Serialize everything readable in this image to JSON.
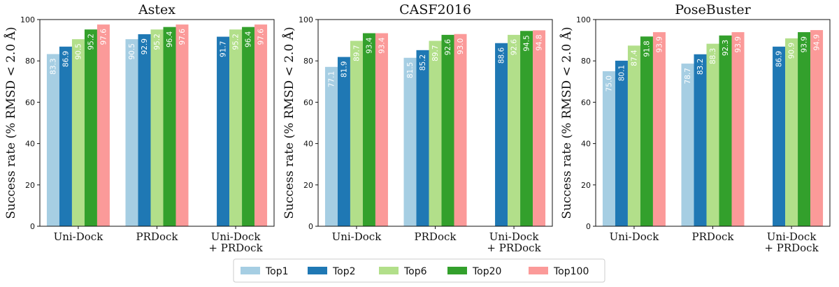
{
  "chart_data": [
    {
      "type": "bar",
      "title": "Astex",
      "ylabel": "Success rate (% RMSD < 2.0 Å)",
      "xlabel": "",
      "ylim": [
        0,
        100
      ],
      "yticks": [
        "0",
        "20",
        "40",
        "60",
        "80",
        "100"
      ],
      "categories": [
        [
          "Uni-Dock"
        ],
        [
          "PRDock"
        ],
        [
          "Uni-Dock",
          "+ PRDock"
        ]
      ],
      "series": [
        {
          "name": "Top1",
          "values": [
            83.3,
            90.5,
            null
          ],
          "labels": [
            "83.3",
            "90.5",
            null
          ]
        },
        {
          "name": "Top2",
          "values": [
            86.9,
            92.9,
            91.7
          ],
          "labels": [
            "86.9",
            "92.9",
            "91.7"
          ]
        },
        {
          "name": "Top6",
          "values": [
            90.5,
            95.2,
            95.2
          ],
          "labels": [
            "90.5",
            "95.2",
            "95.2"
          ]
        },
        {
          "name": "Top20",
          "values": [
            95.2,
            96.4,
            96.4
          ],
          "labels": [
            "95.2",
            "96.4",
            "96.4"
          ]
        },
        {
          "name": "Top100",
          "values": [
            97.6,
            97.6,
            97.6
          ],
          "labels": [
            "97.6",
            "97.6",
            "97.6"
          ]
        }
      ]
    },
    {
      "type": "bar",
      "title": "CASF2016",
      "ylabel": "Success rate (% RMSD < 2.0 Å)",
      "xlabel": "",
      "ylim": [
        0,
        100
      ],
      "yticks": [
        "0",
        "20",
        "40",
        "60",
        "80",
        "100"
      ],
      "categories": [
        [
          "Uni-Dock"
        ],
        [
          "PRDock"
        ],
        [
          "Uni-Dock",
          "+ PRDock"
        ]
      ],
      "series": [
        {
          "name": "Top1",
          "values": [
            77.1,
            81.5,
            null
          ],
          "labels": [
            "77.1",
            "81.5",
            null
          ]
        },
        {
          "name": "Top2",
          "values": [
            81.9,
            85.2,
            88.6
          ],
          "labels": [
            "81.9",
            "85.2",
            "88.6"
          ]
        },
        {
          "name": "Top6",
          "values": [
            89.7,
            89.7,
            92.6
          ],
          "labels": [
            "89.7",
            "89.7",
            "92.6"
          ]
        },
        {
          "name": "Top20",
          "values": [
            93.4,
            92.6,
            94.5
          ],
          "labels": [
            "93.4",
            "92.6",
            "94.5"
          ]
        },
        {
          "name": "Top100",
          "values": [
            93.4,
            93.0,
            94.8
          ],
          "labels": [
            "93.4",
            "93.0",
            "94.8"
          ]
        }
      ]
    },
    {
      "type": "bar",
      "title": "PoseBuster",
      "ylabel": "Success rate (% RMSD < 2.0 Å)",
      "xlabel": "",
      "ylim": [
        0,
        100
      ],
      "yticks": [
        "0",
        "20",
        "40",
        "60",
        "80",
        "100"
      ],
      "categories": [
        [
          "Uni-Dock"
        ],
        [
          "PRDock"
        ],
        [
          "Uni-Dock",
          "+ PRDock"
        ]
      ],
      "series": [
        {
          "name": "Top1",
          "values": [
            75.0,
            78.7,
            null
          ],
          "labels": [
            "75.0",
            "78.7",
            null
          ]
        },
        {
          "name": "Top2",
          "values": [
            80.1,
            83.2,
            86.9
          ],
          "labels": [
            "80.1",
            "83.2",
            "86.9"
          ]
        },
        {
          "name": "Top6",
          "values": [
            87.4,
            88.3,
            90.9
          ],
          "labels": [
            "87.4",
            "88.3",
            "90.9"
          ]
        },
        {
          "name": "Top20",
          "values": [
            91.8,
            92.3,
            93.9
          ],
          "labels": [
            "91.8",
            "92.3",
            "93.9"
          ]
        },
        {
          "name": "Top100",
          "values": [
            93.9,
            93.9,
            94.9
          ],
          "labels": [
            "93.9",
            "93.9",
            "94.9"
          ]
        }
      ]
    }
  ],
  "legend": {
    "placement": "bottom-center",
    "items": [
      {
        "name": "Top1",
        "color": "#a6cee3"
      },
      {
        "name": "Top2",
        "color": "#1f78b4"
      },
      {
        "name": "Top6",
        "color": "#b2df8a"
      },
      {
        "name": "Top20",
        "color": "#33a02c"
      },
      {
        "name": "Top100",
        "color": "#fb9a99"
      }
    ]
  },
  "colors": {
    "Top1": "#a6cee3",
    "Top2": "#1f78b4",
    "Top6": "#b2df8a",
    "Top20": "#33a02c",
    "Top100": "#fb9a99"
  }
}
